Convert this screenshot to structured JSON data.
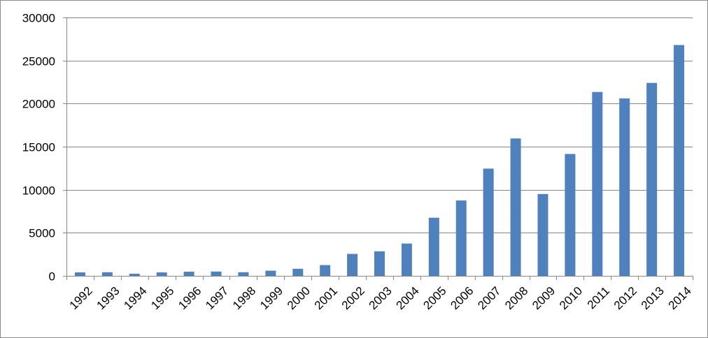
{
  "chart_data": {
    "type": "bar",
    "title": "",
    "xlabel": "",
    "ylabel": "",
    "categories": [
      "1992",
      "1993",
      "1994",
      "1995",
      "1996",
      "1997",
      "1998",
      "1999",
      "2000",
      "2001",
      "2002",
      "2003",
      "2004",
      "2005",
      "2006",
      "2007",
      "2008",
      "2009",
      "2010",
      "2011",
      "2012",
      "2013",
      "2014"
    ],
    "values": [
      400,
      420,
      250,
      400,
      480,
      500,
      420,
      600,
      820,
      1250,
      2550,
      2850,
      3750,
      6750,
      8750,
      12450,
      15950,
      9500,
      14150,
      21350,
      20600,
      22400,
      26800
    ],
    "ylim": [
      0,
      30000
    ],
    "yticks": [
      0,
      5000,
      10000,
      15000,
      20000,
      25000,
      30000
    ],
    "grid": true,
    "legend": "none",
    "colors": {
      "bar": "#4f81bd",
      "grid": "#878787",
      "axis": "#878787",
      "frame": "#8c8c8c"
    }
  }
}
